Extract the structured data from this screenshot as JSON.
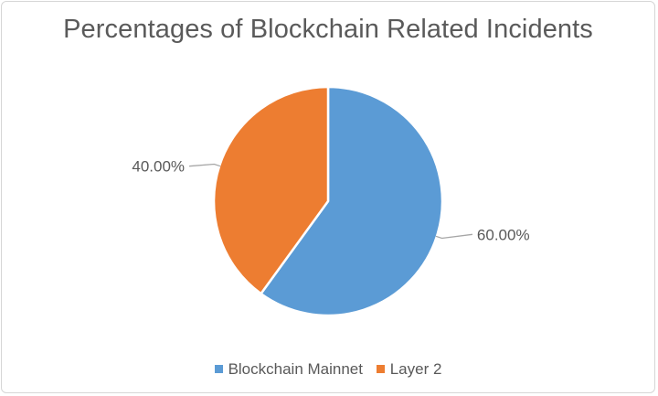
{
  "chart_data": {
    "type": "pie",
    "title": "Percentages of Blockchain Related Incidents",
    "categories": [
      "Blockchain Mainnet",
      "Layer 2"
    ],
    "values": [
      60.0,
      40.0
    ],
    "labels": [
      "60.00%",
      "40.00%"
    ],
    "colors": [
      "#5b9bd5",
      "#ed7d31"
    ],
    "start_angle": "12 o'clock",
    "direction": "clockwise",
    "legend_position": "bottom"
  }
}
